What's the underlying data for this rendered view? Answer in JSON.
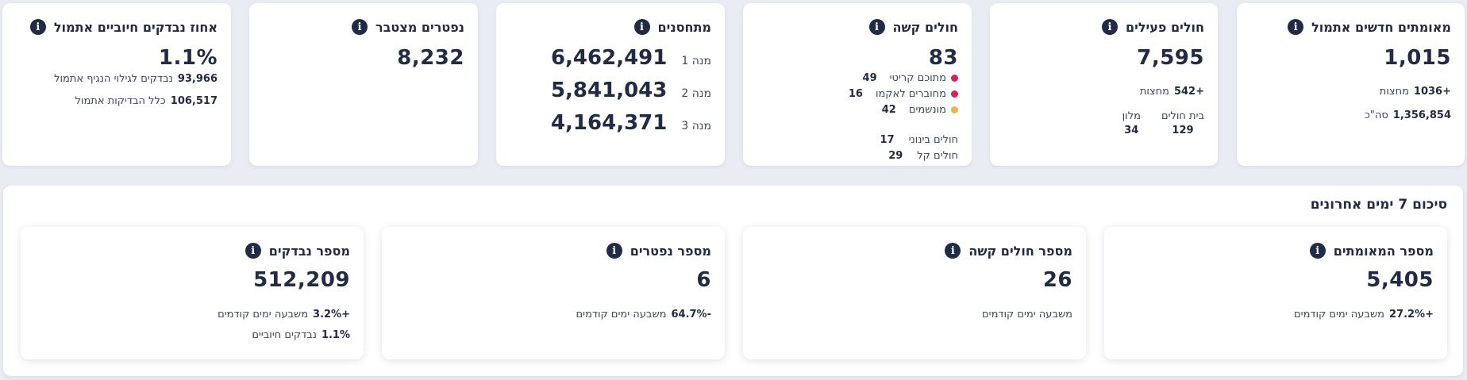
{
  "top_cards": {
    "confirmed": {
      "title": "מאומתים חדשים אתמול",
      "value": "1,015",
      "midnight_num": "+1036",
      "midnight_label": "מחצות",
      "total_num": "1,356,854",
      "total_label": "סה\"כ"
    },
    "active": {
      "title": "חולים פעילים",
      "value": "7,595",
      "midnight_num": "+542",
      "midnight_label": "מחצות",
      "hospital_label": "בית חולים",
      "hospital_num": "129",
      "hotel_label": "מלון",
      "hotel_num": "34"
    },
    "severe": {
      "title": "חולים קשה",
      "value": "83",
      "critical_label": "מתוכם קריטי",
      "critical_num": "49",
      "ecmo_label": "מחוברים לאקמו",
      "ecmo_num": "16",
      "ventilated_label": "מונשמים",
      "ventilated_num": "42",
      "moderate_label": "חולים בינוני",
      "moderate_num": "17",
      "mild_label": "חולים קל",
      "mild_num": "29",
      "critical_color": "#e0234e",
      "ecmo_color": "#e0234e",
      "ventilated_color": "#e8b84a"
    },
    "vaccinated": {
      "title": "מתחסנים",
      "dose1_label": "מנה 1",
      "dose1_value": "6,462,491",
      "dose2_label": "מנה 2",
      "dose2_value": "5,841,043",
      "dose3_label": "מנה 3",
      "dose3_value": "4,164,371"
    },
    "deaths": {
      "title": "נפטרים מצטבר",
      "value": "8,232"
    },
    "positive_rate": {
      "title": "אחוז נבדקים חיוביים אתמול",
      "value": "1.1%",
      "virus_num": "93,966",
      "virus_label": "נבדקים לגילוי הנגיף אתמול",
      "all_num": "106,517",
      "all_label": "כלל הבדיקות אתמול"
    }
  },
  "summary": {
    "title": "סיכום 7 ימים אחרונים",
    "confirmed": {
      "title": "מספר המאומתים",
      "value": "5,405",
      "change": "+27.2%",
      "change_label": "משבעה ימים קודמים"
    },
    "severe": {
      "title": "מספר חולים קשה",
      "value": "26",
      "change_label": "משבעה ימים קודמים"
    },
    "deaths": {
      "title": "מספר נפטרים",
      "value": "6",
      "change": "-64.7%",
      "change_label": "משבעה ימים קודמים"
    },
    "tests": {
      "title": "מספר נבדקים",
      "value": "512,209",
      "change": "+3.2%",
      "change_label": "משבעה ימים קודמים",
      "positive": "1.1%",
      "positive_label": "נבדקים חיוביים"
    }
  },
  "icons": {
    "info": "info-icon"
  }
}
